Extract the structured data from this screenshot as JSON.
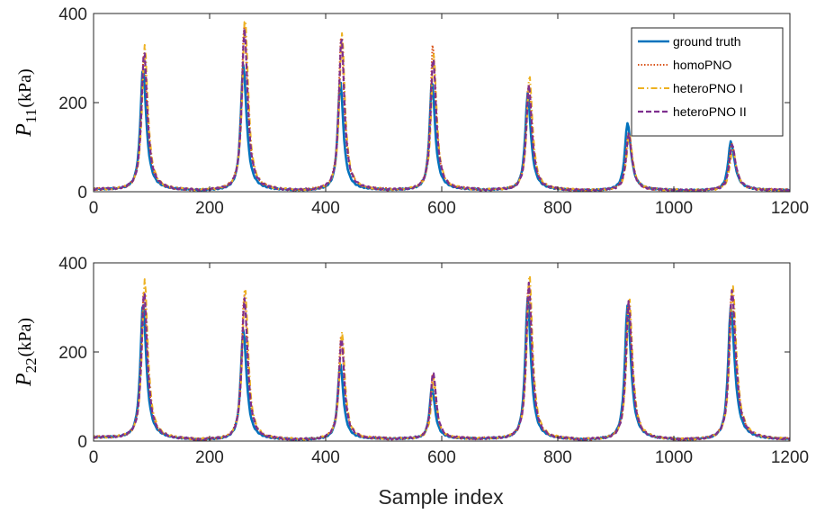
{
  "chart_data": [
    {
      "type": "line",
      "title": "",
      "xlabel": "",
      "ylabel_symbol": "P",
      "ylabel_subscript": "11",
      "ylabel_unit": "(kPa)",
      "xlim": [
        0,
        1200
      ],
      "ylim": [
        0,
        400
      ],
      "xticks": [
        0,
        200,
        400,
        600,
        800,
        1000,
        1200
      ],
      "yticks": [
        0,
        200,
        400
      ],
      "grid": false,
      "legend": {
        "placement": "top-right",
        "entries": [
          "ground truth",
          "homoPNO",
          "heteroPNO I",
          "heteroPNO II"
        ]
      },
      "cycle": {
        "peak_x": [
          85,
          258,
          425,
          583,
          748,
          920,
          1098
        ],
        "valley_x": [
          0,
          172,
          343,
          505,
          665,
          833,
          1010,
          1200
        ],
        "valley_y": [
          5,
          3,
          3,
          4,
          4,
          3,
          3,
          3
        ]
      },
      "series": [
        {
          "name": "ground truth",
          "color": "#0072BD",
          "style": "solid",
          "peaks": [
            278,
            285,
            250,
            248,
            220,
            155,
            112
          ]
        },
        {
          "name": "homoPNO",
          "color": "#D95319",
          "style": "dotted",
          "peaks": [
            310,
            375,
            350,
            330,
            245,
            135,
            110
          ]
        },
        {
          "name": "heteroPNO I",
          "color": "#EDB120",
          "style": "dashdot",
          "peaks": [
            328,
            392,
            356,
            310,
            262,
            130,
            95
          ]
        },
        {
          "name": "heteroPNO II",
          "color": "#7E2F8E",
          "style": "dashed",
          "peaks": [
            315,
            365,
            348,
            305,
            240,
            128,
            105
          ]
        }
      ]
    },
    {
      "type": "line",
      "title": "",
      "xlabel": "Sample index",
      "ylabel_symbol": "P",
      "ylabel_subscript": "22",
      "ylabel_unit": "(kPa)",
      "xlim": [
        0,
        1200
      ],
      "ylim": [
        0,
        400
      ],
      "xticks": [
        0,
        200,
        400,
        600,
        800,
        1000,
        1200
      ],
      "yticks": [
        0,
        200,
        400
      ],
      "grid": false,
      "cycle": {
        "peak_x": [
          85,
          258,
          425,
          583,
          748,
          920,
          1098
        ],
        "valley_x": [
          0,
          172,
          343,
          505,
          665,
          833,
          1010,
          1200
        ],
        "valley_y": [
          8,
          3,
          3,
          5,
          5,
          3,
          3,
          3
        ]
      },
      "series": [
        {
          "name": "ground truth",
          "color": "#0072BD",
          "style": "solid",
          "peaks": [
            310,
            250,
            175,
            120,
            320,
            305,
            300
          ]
        },
        {
          "name": "homoPNO",
          "color": "#D95319",
          "style": "dotted",
          "peaks": [
            340,
            330,
            238,
            150,
            360,
            318,
            340
          ]
        },
        {
          "name": "heteroPNO I",
          "color": "#EDB120",
          "style": "dashdot",
          "peaks": [
            362,
            345,
            245,
            140,
            378,
            322,
            352
          ]
        },
        {
          "name": "heteroPNO II",
          "color": "#7E2F8E",
          "style": "dashed",
          "peaks": [
            335,
            320,
            232,
            158,
            355,
            312,
            338
          ]
        }
      ]
    }
  ]
}
